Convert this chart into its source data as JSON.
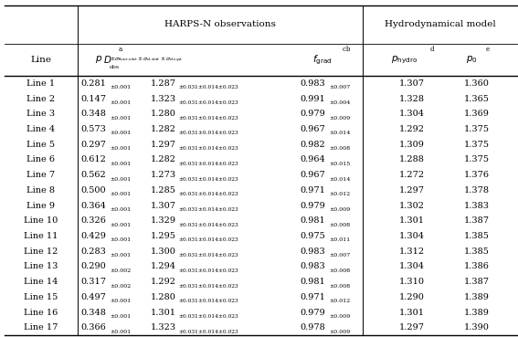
{
  "lines": [
    "Line 1",
    "Line 2",
    "Line 3",
    "Line 4",
    "Line 5",
    "Line 6",
    "Line 7",
    "Line 8",
    "Line 9",
    "Line 10",
    "Line 11",
    "Line 12",
    "Line 13",
    "Line 14",
    "Line 15",
    "Line 16",
    "Line 17"
  ],
  "D_main": [
    "0.281",
    "0.147",
    "0.348",
    "0.573",
    "0.297",
    "0.612",
    "0.562",
    "0.500",
    "0.364",
    "0.326",
    "0.429",
    "0.283",
    "0.290",
    "0.317",
    "0.497",
    "0.348",
    "0.366"
  ],
  "D_err": [
    "±0.001",
    "±0.001",
    "±0.001",
    "±0.001",
    "±0.001",
    "±0.001",
    "±0.001",
    "±0.001",
    "±0.001",
    "±0.001",
    "±0.001",
    "±0.001",
    "±0.002",
    "±0.002",
    "±0.001",
    "±0.001",
    "±0.001"
  ],
  "p_main": [
    "1.287",
    "1.323",
    "1.280",
    "1.282",
    "1.297",
    "1.282",
    "1.273",
    "1.285",
    "1.307",
    "1.329",
    "1.295",
    "1.300",
    "1.294",
    "1.292",
    "1.280",
    "1.301",
    "1.323"
  ],
  "p_err": [
    "±0.031±0.014±0.023",
    "±0.031±0.014±0.023",
    "±0.031±0.014±0.023",
    "±0.031±0.014±0.023",
    "±0.031±0.014±0.023",
    "±0.031±0.014±0.023",
    "±0.031±0.014±0.023",
    "±0.031±0.014±0.023",
    "±0.031±0.014±0.023",
    "±0.031±0.014±0.023",
    "±0.031±0.014±0.023",
    "±0.031±0.014±0.023",
    "±0.031±0.014±0.023",
    "±0.031±0.014±0.023",
    "±0.031±0.014±0.023",
    "±0.031±0.014±0.023",
    "±0.031±0.014±0.023"
  ],
  "fgrad_main": [
    "0.983",
    "0.991",
    "0.979",
    "0.967",
    "0.982",
    "0.964",
    "0.967",
    "0.971",
    "0.979",
    "0.981",
    "0.975",
    "0.983",
    "0.983",
    "0.981",
    "0.971",
    "0.979",
    "0.978"
  ],
  "fgrad_err": [
    "±0.007",
    "±0.004",
    "±0.009",
    "±0.014",
    "±0.008",
    "±0.015",
    "±0.014",
    "±0.012",
    "±0.009",
    "±0.008",
    "±0.011",
    "±0.007",
    "±0.008",
    "±0.008",
    "±0.012",
    "±0.009",
    "±0.009"
  ],
  "p_hydro": [
    "1.307",
    "1.328",
    "1.304",
    "1.292",
    "1.309",
    "1.288",
    "1.272",
    "1.297",
    "1.302",
    "1.301",
    "1.304",
    "1.312",
    "1.304",
    "1.310",
    "1.290",
    "1.301",
    "1.297"
  ],
  "p0": [
    "1.360",
    "1.365",
    "1.369",
    "1.375",
    "1.375",
    "1.375",
    "1.376",
    "1.378",
    "1.383",
    "1.387",
    "1.385",
    "1.385",
    "1.386",
    "1.387",
    "1.389",
    "1.389",
    "1.390"
  ],
  "figsize": [
    5.67,
    3.69
  ],
  "dpi": 100,
  "fs_large": 7.5,
  "fs_data": 7.0,
  "fs_small": 5.0,
  "fs_tiny": 4.5
}
